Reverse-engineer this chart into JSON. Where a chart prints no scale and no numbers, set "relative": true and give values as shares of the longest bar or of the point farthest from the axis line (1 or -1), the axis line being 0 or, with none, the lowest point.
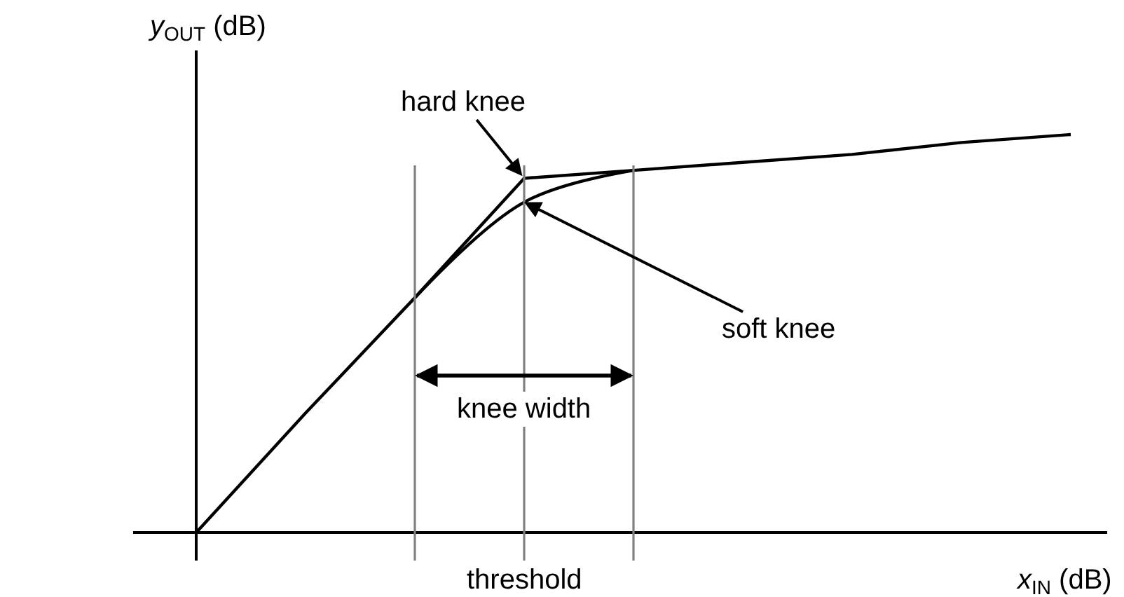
{
  "chart_data": {
    "type": "line",
    "relative": true,
    "xlabel": "x$_{IN}$ (dB)",
    "ylabel": "y$_{OUT}$ (dB)",
    "categories": [
      null,
      null,
      null,
      null,
      null,
      null,
      null,
      null,
      null
    ],
    "series": [
      {
        "name": "hard knee",
        "color": "#000000",
        "values": [
          0,
          0.3,
          0.59,
          0.89,
          0.91,
          0.93,
          0.95,
          0.98,
          1.0
        ]
      },
      {
        "name": "soft knee",
        "color": "#000000",
        "values": [
          null,
          null,
          0.59,
          0.83,
          0.91,
          null,
          null,
          null,
          null
        ]
      }
    ],
    "annotations": [
      "knee width",
      "threshold"
    ],
    "legend": false,
    "grid": "x",
    "marker": "none",
    "line_style": "solid"
  }
}
